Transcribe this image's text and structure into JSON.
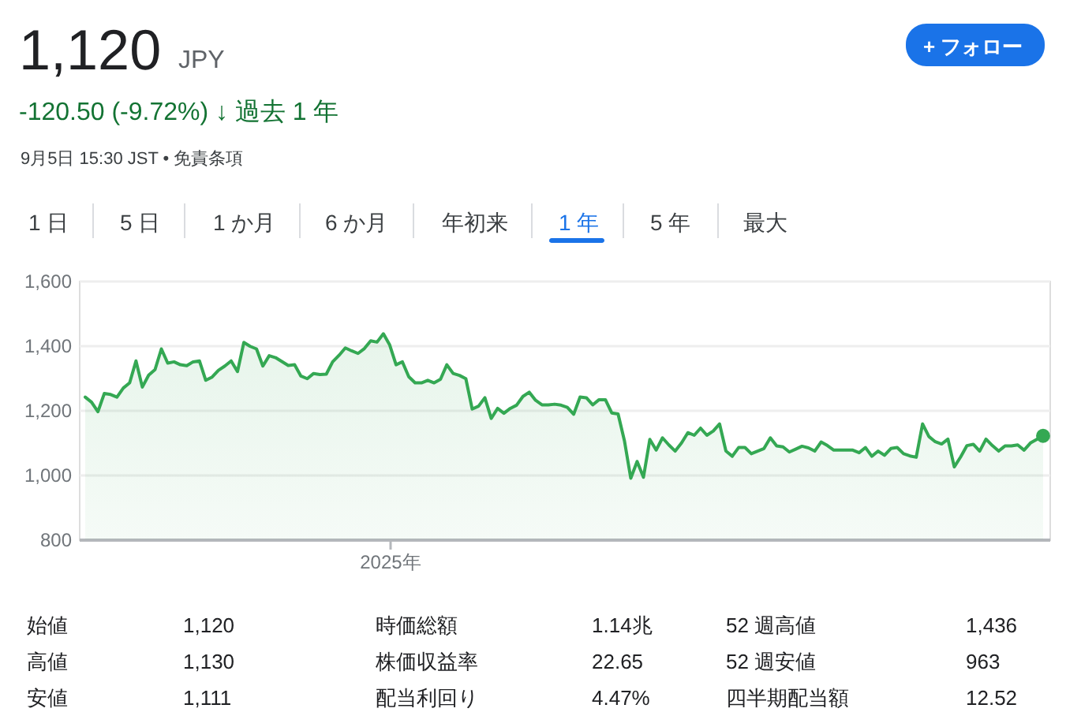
{
  "chart_data": {
    "type": "area",
    "title": "1,120",
    "subtitle": "-120.50 (-9.72%) ↓ 過去 1 年",
    "annotations": [
      "JPY",
      "9月5日 15:30 JST • 免責条項",
      "+ フォロー",
      "1 日",
      "5 日",
      "1 か月",
      "6 か月",
      "年初来",
      "1 年",
      "5 年",
      "最大",
      "始値",
      "1,120",
      "時価総額",
      "1.14兆",
      "52 週高値",
      "1,436",
      "高値",
      "1,130",
      "株価収益率",
      "22.65",
      "52 週安値",
      "963",
      "安値",
      "1,111",
      "配当利回り",
      "4.47%",
      "四半期配当額",
      "12.52"
    ],
    "categories": [
      null,
      null,
      null,
      null,
      null,
      null,
      null,
      null,
      null,
      null,
      null,
      null,
      null,
      null,
      null,
      null,
      null,
      null,
      null,
      null,
      null,
      null,
      null,
      null,
      null,
      null,
      null,
      null,
      null,
      null,
      null,
      null,
      null,
      null,
      null,
      null,
      null,
      null,
      null,
      null,
      null,
      null,
      null,
      null,
      null,
      null,
      null,
      null,
      "2025年",
      null,
      null,
      null,
      null,
      null,
      null,
      null,
      null,
      null,
      null,
      null,
      null,
      null,
      null,
      null,
      null,
      null,
      null,
      null,
      null,
      null,
      null,
      null,
      null,
      null,
      null,
      null,
      null,
      null,
      null,
      null,
      null,
      null,
      null,
      null,
      null,
      null,
      null,
      null,
      null,
      null,
      null,
      null,
      null,
      null,
      null,
      null,
      null,
      null,
      null,
      null,
      null,
      null,
      null,
      null,
      null,
      null,
      null,
      null,
      null,
      null,
      null,
      null,
      null,
      null,
      null,
      null,
      null,
      null,
      null,
      null,
      null,
      null,
      null,
      null,
      null,
      null,
      null,
      null,
      null,
      null,
      null,
      null,
      null,
      null,
      null,
      null,
      null,
      null,
      null,
      null,
      null,
      null,
      null,
      null,
      null,
      null,
      null,
      null,
      null,
      null,
      null,
      null
    ],
    "ylim": [
      800,
      1600
    ],
    "yticks": [
      {
        "value": 800,
        "label": "800"
      },
      {
        "value": 1000,
        "label": "1,000"
      },
      {
        "value": 1200,
        "label": "1,200"
      },
      {
        "value": 1400,
        "label": "1,400"
      },
      {
        "value": 1600,
        "label": "1,600"
      }
    ],
    "grid": "y",
    "series": [
      {
        "color": "#34a853",
        "values": [
          1240,
          1224,
          1195,
          1251,
          1248,
          1240,
          1268,
          1284,
          1352,
          1271,
          1308,
          1325,
          1389,
          1345,
          1349,
          1340,
          1337,
          1349,
          1352,
          1292,
          1302,
          1323,
          1336,
          1352,
          1319,
          1409,
          1397,
          1389,
          1336,
          1368,
          1362,
          1350,
          1338,
          1340,
          1305,
          1297,
          1313,
          1310,
          1311,
          1349,
          1369,
          1392,
          1383,
          1375,
          1390,
          1414,
          1410,
          1436,
          1401,
          1340,
          1349,
          1303,
          1284,
          1284,
          1292,
          1284,
          1295,
          1340,
          1313,
          1307,
          1297,
          1203,
          1212,
          1238,
          1174,
          1205,
          1190,
          1205,
          1215,
          1242,
          1255,
          1230,
          1216,
          1216,
          1218,
          1215,
          1208,
          1187,
          1240,
          1238,
          1216,
          1232,
          1232,
          1191,
          1188,
          1105,
          989,
          1041,
          992,
          1109,
          1076,
          1114,
          1092,
          1073,
          1098,
          1130,
          1122,
          1144,
          1122,
          1135,
          1157,
          1073,
          1057,
          1084,
          1084,
          1065,
          1073,
          1081,
          1114,
          1089,
          1086,
          1070,
          1079,
          1088,
          1083,
          1073,
          1101,
          1090,
          1076,
          1076,
          1076,
          1076,
          1068,
          1084,
          1057,
          1073,
          1060,
          1081,
          1084,
          1065,
          1058,
          1054,
          1157,
          1118,
          1102,
          1095,
          1110,
          1024,
          1055,
          1090,
          1094,
          1073,
          1110,
          1090,
          1073,
          1089,
          1089,
          1092,
          1076,
          1098,
          1109,
          1120
        ]
      },
      {
        "type": "scatter",
        "color": "#34a853",
        "values": [
          null,
          null,
          null,
          null,
          null,
          null,
          null,
          null,
          null,
          null,
          null,
          null,
          null,
          null,
          null,
          null,
          null,
          null,
          null,
          null,
          null,
          null,
          null,
          null,
          null,
          null,
          null,
          null,
          null,
          null,
          null,
          null,
          null,
          null,
          null,
          null,
          null,
          null,
          null,
          null,
          null,
          null,
          null,
          null,
          null,
          null,
          null,
          null,
          null,
          null,
          null,
          null,
          null,
          null,
          null,
          null,
          null,
          null,
          null,
          null,
          null,
          null,
          null,
          null,
          null,
          null,
          null,
          null,
          null,
          null,
          null,
          null,
          null,
          null,
          null,
          null,
          null,
          null,
          null,
          null,
          null,
          null,
          null,
          null,
          null,
          null,
          null,
          null,
          null,
          null,
          null,
          null,
          null,
          null,
          null,
          null,
          null,
          null,
          null,
          null,
          null,
          null,
          null,
          null,
          null,
          null,
          null,
          null,
          null,
          null,
          null,
          null,
          null,
          null,
          null,
          null,
          null,
          null,
          null,
          null,
          null,
          null,
          null,
          null,
          null,
          null,
          null,
          null,
          null,
          null,
          null,
          null,
          null,
          null,
          null,
          null,
          null,
          null,
          null,
          null,
          null,
          null,
          null,
          null,
          null,
          null,
          null,
          null,
          null,
          null,
          null,
          1120
        ]
      }
    ]
  }
}
